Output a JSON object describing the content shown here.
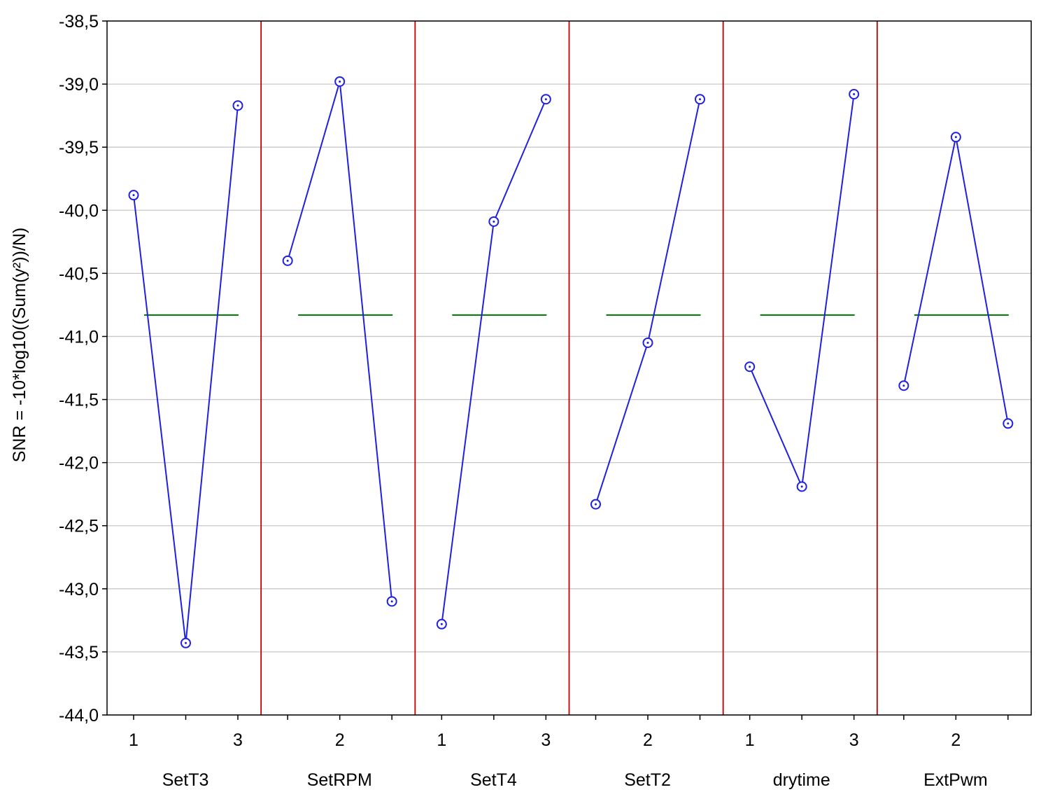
{
  "chart_data": {
    "type": "line",
    "title": "",
    "ylabel": "SNR = -10*log10((Sum(y²))/N)",
    "ylim": [
      -44.0,
      -38.5
    ],
    "ytick_values": [
      -38.5,
      -39.0,
      -39.5,
      -40.0,
      -40.5,
      -41.0,
      -41.5,
      -42.0,
      -42.5,
      -43.0,
      -43.5,
      -44.0
    ],
    "ytick_labels": [
      "-38,5",
      "-39,0",
      "-39,5",
      "-40,0",
      "-40,5",
      "-41,0",
      "-41,5",
      "-42,0",
      "-42,5",
      "-43,0",
      "-43,5",
      "-44,0"
    ],
    "grid": true,
    "mean_snr": -40.83,
    "colors": {
      "line": "#2020e0",
      "mean": "#007000",
      "separator": "#c00000",
      "grid": "#c8c8c8"
    },
    "factors": [
      {
        "name": "SetT3",
        "tick_labels": [
          "1",
          "",
          "3"
        ],
        "levels": [
          1,
          2,
          3
        ],
        "values": [
          -39.88,
          -43.43,
          -39.17
        ]
      },
      {
        "name": "SetRPM",
        "tick_labels": [
          "",
          "2",
          ""
        ],
        "levels": [
          1,
          2,
          3
        ],
        "values": [
          -40.4,
          -38.98,
          -43.1
        ]
      },
      {
        "name": "SetT4",
        "tick_labels": [
          "1",
          "",
          "3"
        ],
        "levels": [
          1,
          2,
          3
        ],
        "values": [
          -43.28,
          -40.09,
          -39.12
        ]
      },
      {
        "name": "SetT2",
        "tick_labels": [
          "",
          "2",
          ""
        ],
        "levels": [
          1,
          2,
          3
        ],
        "values": [
          -42.33,
          -41.05,
          -39.12
        ]
      },
      {
        "name": "drytime",
        "tick_labels": [
          "1",
          "",
          "3"
        ],
        "levels": [
          1,
          2,
          3
        ],
        "values": [
          -41.24,
          -42.19,
          -39.08
        ]
      },
      {
        "name": "ExtPwm",
        "tick_labels": [
          "",
          "2",
          ""
        ],
        "levels": [
          1,
          2,
          3
        ],
        "values": [
          -41.39,
          -39.42,
          -41.69
        ]
      }
    ]
  }
}
